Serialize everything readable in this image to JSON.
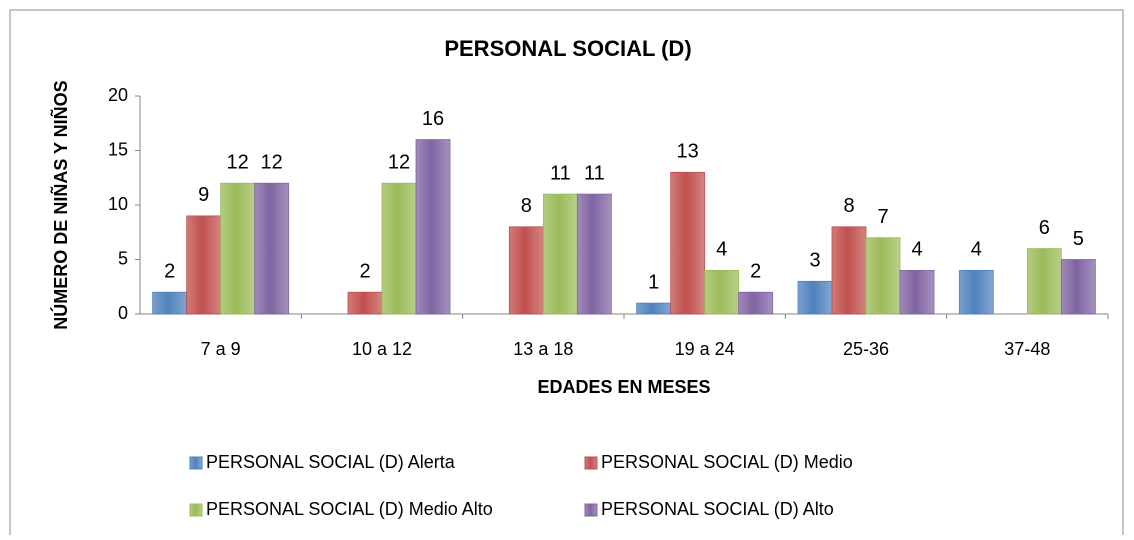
{
  "chart_data": {
    "type": "bar",
    "title": "PERSONAL SOCIAL (D)",
    "xlabel": "EDADES EN MESES",
    "ylabel": "NÚMERO DE NIÑAS Y NIÑOS",
    "categories": [
      "7 a 9",
      "10 a 12",
      "13 a 18",
      "19 a 24",
      "25-36",
      "37-48"
    ],
    "series": [
      {
        "name": "PERSONAL SOCIAL (D) Alerta",
        "color": "#4f81bd",
        "values": [
          2,
          null,
          null,
          1,
          3,
          4
        ]
      },
      {
        "name": "PERSONAL SOCIAL (D) Medio",
        "color": "#c0504d",
        "values": [
          9,
          2,
          8,
          13,
          8,
          null
        ]
      },
      {
        "name": "PERSONAL SOCIAL (D) Medio Alto",
        "color": "#9bbb59",
        "values": [
          12,
          12,
          11,
          4,
          7,
          6
        ]
      },
      {
        "name": "PERSONAL SOCIAL (D) Alto",
        "color": "#8064a2",
        "values": [
          12,
          16,
          11,
          2,
          4,
          5
        ]
      }
    ],
    "ylim": [
      0,
      20
    ],
    "yticks": [
      0,
      5,
      10,
      15,
      20
    ],
    "grid": false
  }
}
